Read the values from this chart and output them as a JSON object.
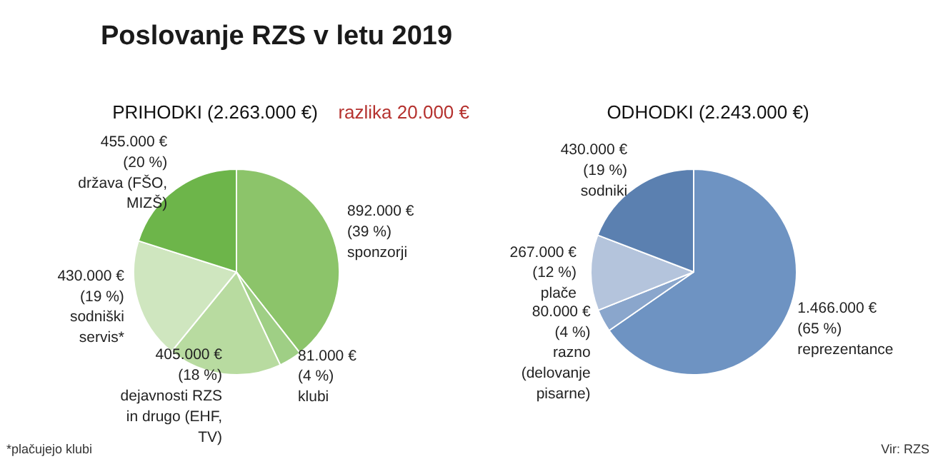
{
  "chart_data": [
    {
      "type": "pie",
      "title": "PRIHODKI (2.263.000 €)",
      "categories": [
        "sponzorji",
        "klubi",
        "dejavnosti RZS in drugo (EHF, TV)",
        "sodniški servis*",
        "država (FŠO, MIZŠ)"
      ],
      "values": [
        892000,
        81000,
        405000,
        430000,
        455000
      ],
      "colors": [
        "#8cc46a",
        "#9fcf85",
        "#b8dba0",
        "#cfe6bf",
        "#6db54a"
      ],
      "value_labels": [
        "892.000 € (39 %)",
        "81.000 € (4 %)",
        "405.000 € (18 %)",
        "430.000 € (19 %)",
        "455.000 € (20 %)"
      ],
      "annotations": [
        "Poslovanje RZS v letu 2019",
        "razlika 20.000 €",
        "*plačujejo klubi"
      ]
    },
    {
      "type": "pie",
      "title": "ODHODKI (2.243.000 €)",
      "categories": [
        "reprezentance",
        "razno (delovanje pisarne)",
        "plače",
        "sodniki"
      ],
      "values": [
        1466000,
        80000,
        267000,
        430000
      ],
      "colors": [
        "#6e93c2",
        "#8aa6cc",
        "#b4c4dc",
        "#5b80b0"
      ],
      "value_labels": [
        "1.466.000 € (65 %)",
        "80.000 € (4 %)",
        "267.000 € (12 %)",
        "430.000 € (19 %)"
      ],
      "annotations": [
        "Vir: RZS"
      ]
    }
  ]
}
